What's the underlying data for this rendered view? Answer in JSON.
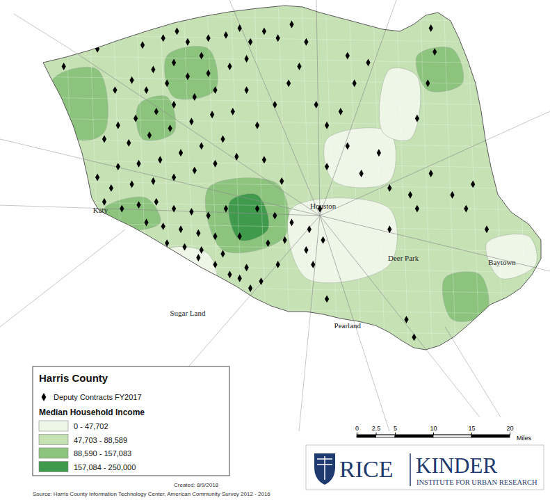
{
  "chart_data": {
    "type": "map",
    "title": "Harris County",
    "legend": "bottom-left",
    "points": {
      "name": "Deputy Contracts FY2017",
      "marker": "diamond",
      "color": "#000000",
      "x": [
        4.7,
        9.1,
        15.0,
        17.7,
        19.5,
        20.9,
        23.6,
        25.9,
        27.7,
        29.1,
        30.9,
        32.7,
        34.5,
        36.4,
        22.7,
        19.1,
        16.4,
        13.6,
        11.4,
        15.5,
        18.2,
        20.9,
        23.6,
        26.4,
        28.6,
        24.5,
        21.8,
        19.1,
        16.8,
        14.1,
        11.8,
        10.0,
        13.2,
        15.9,
        18.6,
        21.4,
        24.1,
        26.8,
        28.6,
        25.5,
        22.7,
        20.0,
        17.3,
        14.5,
        11.8,
        9.1,
        10.9,
        13.6,
        16.4,
        19.1,
        21.8,
        24.5,
        27.3,
        30.0,
        32.3,
        34.1,
        35.5,
        30.9,
        33.2,
        10.0,
        12.3,
        14.5,
        16.8,
        19.1,
        21.4,
        23.6,
        25.9,
        15.5,
        17.7,
        20.0,
        22.3,
        24.5,
        18.2,
        20.5,
        22.7,
        25.5,
        27.7,
        22.3,
        24.5,
        26.4,
        28.6,
        27.7,
        29.1,
        30.5,
        30.0,
        32.3,
        34.5,
        36.8,
        38.2,
        33.6,
        36.4,
        38.6,
        31.4,
        39.1,
        37.3,
        32.7,
        37.7,
        39.1,
        40.9,
        41.8,
        43.6,
        39.1,
        45.9,
        47.3,
        50.0,
        52.7,
        55.5,
        58.2,
        50.9,
        47.3,
        52.7,
        53.2,
        52.3,
        50.9,
        42.7,
        44.5,
        41.8,
        49.5,
        50.5,
        57.3,
        60.0
      ],
      "y": [
        39.5,
        41.8,
        42.3,
        43.2,
        44.1,
        42.7,
        43.2,
        43.6,
        44.5,
        42.7,
        44.1,
        43.2,
        45.0,
        42.7,
        40.9,
        40.0,
        39.1,
        37.7,
        36.4,
        36.4,
        37.3,
        38.2,
        38.6,
        39.5,
        40.5,
        36.4,
        35.5,
        34.5,
        33.6,
        32.7,
        31.8,
        30.0,
        29.5,
        30.5,
        31.4,
        32.3,
        33.2,
        33.6,
        36.4,
        30.0,
        29.1,
        28.2,
        27.3,
        26.8,
        26.4,
        25.0,
        23.6,
        24.1,
        24.5,
        25.0,
        25.9,
        26.8,
        27.7,
        31.8,
        34.5,
        37.3,
        39.5,
        27.3,
        24.5,
        21.8,
        20.9,
        21.4,
        21.8,
        20.9,
        20.5,
        20.0,
        20.9,
        19.1,
        18.6,
        18.2,
        17.7,
        17.3,
        16.4,
        15.9,
        15.5,
        15.0,
        17.3,
        14.5,
        13.6,
        12.3,
        13.2,
        11.8,
        10.5,
        11.4,
        20.9,
        20.0,
        19.1,
        18.2,
        20.9,
        16.8,
        15.5,
        16.8,
        16.4,
        9.1,
        13.6,
        13.6,
        34.5,
        31.8,
        33.6,
        29.1,
        25.5,
        26.4,
        28.2,
        23.6,
        22.7,
        25.5,
        22.7,
        24.1,
        20.9,
        18.2,
        44.5,
        41.4,
        37.3,
        32.7,
        37.3,
        40.0,
        40.9,
        6.4,
        4.1,
        20.9,
        18.2
      ]
    },
    "income_title": "Median Household Income",
    "income_classes": [
      {
        "min": 0,
        "max": 47702,
        "label": "0 - 47,702",
        "color": "#eef6e7"
      },
      {
        "min": 47703,
        "max": 88589,
        "label": "47,703 - 88,589",
        "color": "#c6e2b5"
      },
      {
        "min": 88590,
        "max": 157083,
        "label": "88,590 - 157,083",
        "color": "#8cc47d"
      },
      {
        "min": 157084,
        "max": 250000,
        "label": "157,084 - 250,000",
        "color": "#3f9a4c"
      }
    ],
    "areas": [
      {
        "median_income": 110000,
        "outline": [
          [
            3.2,
            37.7
          ],
          [
            9.1,
            39.1
          ],
          [
            10.0,
            30.9
          ],
          [
            6.4,
            30.0
          ]
        ]
      },
      {
        "median_income": 95000,
        "outline": [
          [
            10.0,
            20.9
          ],
          [
            15.5,
            22.3
          ],
          [
            17.3,
            19.1
          ],
          [
            12.7,
            18.2
          ]
        ]
      },
      {
        "median_income": 130000,
        "outline": [
          [
            23.6,
            23.6
          ],
          [
            32.7,
            24.1
          ],
          [
            33.6,
            17.3
          ],
          [
            25.5,
            15.5
          ]
        ]
      },
      {
        "median_income": 185000,
        "outline": [
          [
            26.4,
            21.8
          ],
          [
            30.0,
            22.7
          ],
          [
            31.4,
            18.2
          ],
          [
            27.7,
            16.8
          ]
        ]
      },
      {
        "median_income": 105000,
        "outline": [
          [
            50.9,
            40.9
          ],
          [
            55.5,
            41.8
          ],
          [
            56.8,
            37.3
          ],
          [
            52.3,
            36.4
          ]
        ]
      },
      {
        "median_income": 110000,
        "outline": [
          [
            54.5,
            11.8
          ],
          [
            59.1,
            12.3
          ],
          [
            60.0,
            7.3
          ],
          [
            55.5,
            6.4
          ]
        ]
      },
      {
        "median_income": 35000,
        "outline": [
          [
            34.5,
            20.9
          ],
          [
            47.3,
            20.9
          ],
          [
            47.3,
            13.6
          ],
          [
            36.4,
            11.8
          ]
        ]
      },
      {
        "median_income": 40000,
        "outline": [
          [
            39.1,
            30.0
          ],
          [
            47.3,
            30.9
          ],
          [
            47.3,
            24.5
          ],
          [
            40.0,
            24.5
          ]
        ]
      },
      {
        "median_income": 42000,
        "outline": [
          [
            18.2,
            15.5
          ],
          [
            23.6,
            15.0
          ],
          [
            24.5,
            10.0
          ],
          [
            19.1,
            10.5
          ]
        ]
      },
      {
        "median_income": 40000,
        "outline": [
          [
            60.0,
            16.4
          ],
          [
            65.5,
            17.3
          ],
          [
            66.4,
            13.6
          ],
          [
            61.8,
            11.8
          ]
        ]
      },
      {
        "median_income": 92000,
        "outline": [
          [
            18.2,
            40.9
          ],
          [
            23.6,
            41.8
          ],
          [
            24.5,
            36.4
          ],
          [
            19.1,
            35.5
          ]
        ]
      },
      {
        "median_income": 120000,
        "outline": [
          [
            14.5,
            34.5
          ],
          [
            18.2,
            35.5
          ],
          [
            19.1,
            30.9
          ],
          [
            15.0,
            30.0
          ]
        ]
      },
      {
        "median_income": 45000,
        "outline": [
          [
            47.3,
            39.1
          ],
          [
            50.9,
            38.2
          ],
          [
            50.0,
            30.0
          ],
          [
            46.4,
            30.9
          ]
        ]
      }
    ],
    "places": [
      {
        "name": "Katy",
        "x": 9.5,
        "y": 20.6
      },
      {
        "name": "Houston",
        "x": 38.6,
        "y": 21.1
      },
      {
        "name": "Baytown",
        "x": 62.0,
        "y": 13.8
      },
      {
        "name": "Deer Park",
        "x": 49.1,
        "y": 14.3
      },
      {
        "name": "Sugar Land",
        "x": 20.9,
        "y": 7.1
      },
      {
        "name": "Pearland",
        "x": 41.8,
        "y": 5.5
      }
    ],
    "scale_bar": {
      "ticks": [
        0,
        2.5,
        5,
        10,
        15,
        20
      ],
      "unit": "Miles"
    },
    "created": "Created: 8/9/2018",
    "source": "Source: Harris County Information Technology Center, American Community Survey 2012 - 2016",
    "logo": {
      "left": "RICE",
      "right": "KINDER",
      "subtitle": "INSTITUTE FOR URBAN RESEARCH"
    }
  }
}
